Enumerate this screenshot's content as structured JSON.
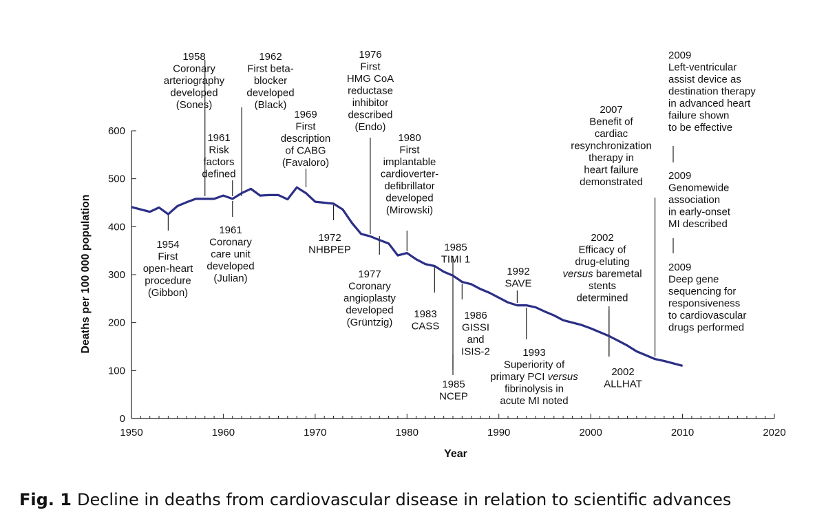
{
  "caption": {
    "label": "Fig. 1",
    "text": "Decline in deaths from cardiovascular disease in relation to scientific advances"
  },
  "chart_data": {
    "type": "line",
    "title": "",
    "xlabel": "Year",
    "ylabel": "Deaths per 100 000 population",
    "xlim": [
      1950,
      2020
    ],
    "ylim": [
      0,
      600
    ],
    "xticks": [
      1950,
      1960,
      1970,
      1980,
      1990,
      2000,
      2010,
      2020
    ],
    "yticks": [
      0,
      100,
      200,
      300,
      400,
      500,
      600
    ],
    "grid": false,
    "line_color": "#2b2f86",
    "series": [
      {
        "x": [
          1950,
          1952,
          1953,
          1954,
          1955,
          1956,
          1957,
          1958,
          1959,
          1960,
          1961,
          1962,
          1963,
          1964,
          1965,
          1966,
          1967,
          1968,
          1969,
          1970,
          1971,
          1972,
          1973,
          1974,
          1975,
          1976,
          1977,
          1978,
          1979,
          1980,
          1981,
          1982,
          1983,
          1984,
          1985,
          1986,
          1987,
          1988,
          1989,
          1990,
          1991,
          1992,
          1993,
          1994,
          1995,
          1996,
          1997,
          1998,
          1999,
          2000,
          2001,
          2002,
          2003,
          2004,
          2005,
          2006,
          2007,
          2008,
          2009,
          2010
        ],
        "values": [
          441,
          431,
          440,
          426,
          443,
          451,
          458,
          458,
          458,
          465,
          458,
          470,
          479,
          465,
          466,
          466,
          457,
          482,
          470,
          452,
          450,
          448,
          436,
          408,
          385,
          380,
          372,
          365,
          340,
          345,
          332,
          322,
          318,
          306,
          298,
          285,
          280,
          270,
          262,
          252,
          242,
          236,
          236,
          232,
          223,
          215,
          205,
          200,
          195,
          188,
          180,
          172,
          162,
          152,
          140,
          132,
          124,
          120,
          115,
          110
        ]
      }
    ],
    "annotations": [
      {
        "year": 1958,
        "lines": [
          "1958",
          "Coronary",
          "arteriography",
          "developed",
          "(Sones)"
        ]
      },
      {
        "year": 1962,
        "lines": [
          "1962",
          "First beta-",
          "blocker",
          "developed",
          "(Black)"
        ]
      },
      {
        "year": 1969,
        "lines": [
          "1969",
          "First",
          "description",
          "of CABG",
          "(Favaloro)"
        ]
      },
      {
        "year": 1976,
        "lines": [
          "1976",
          "First",
          "HMG CoA",
          "reductase",
          "inhibitor",
          "described",
          "(Endo)"
        ]
      },
      {
        "year": 1961,
        "lines": [
          "1961",
          "Risk",
          "factors",
          "defined"
        ]
      },
      {
        "year": 1980,
        "lines": [
          "1980",
          "First",
          "implantable",
          "cardioverter-",
          "defibrillator",
          "developed",
          "(Mirowski)"
        ]
      },
      {
        "year": 2007,
        "lines": [
          "2007",
          "Benefit of",
          "cardiac",
          "resynchronization",
          "therapy in",
          "heart failure",
          "demonstrated"
        ]
      },
      {
        "year": 2009,
        "lines": [
          "2009",
          "Left-ventricular",
          "assist device as",
          "destination therapy",
          "in advanced heart",
          "failure shown",
          "to be effective"
        ]
      },
      {
        "year": 2009,
        "lines": [
          "2009",
          "Genomewide",
          "association",
          "in early-onset",
          "MI described"
        ]
      },
      {
        "year": 2009,
        "lines": [
          "2009",
          "Deep gene",
          "sequencing for",
          "responsiveness",
          "to cardiovascular",
          "drugs performed"
        ]
      },
      {
        "year": 1954,
        "lines": [
          "1954",
          "First",
          "open-heart",
          "procedure",
          "(Gibbon)"
        ]
      },
      {
        "year": 1961,
        "lines": [
          "1961",
          "Coronary",
          "care unit",
          "developed",
          "(Julian)"
        ]
      },
      {
        "year": 1972,
        "lines": [
          "1972",
          "NHBPEP"
        ]
      },
      {
        "year": 1977,
        "lines": [
          "1977",
          "Coronary",
          "angioplasty",
          "developed",
          "(Grüntzig)"
        ]
      },
      {
        "year": 1983,
        "lines": [
          "1983",
          "CASS"
        ]
      },
      {
        "year": 1985,
        "lines": [
          "1985",
          "TIMI 1"
        ]
      },
      {
        "year": 1986,
        "lines": [
          "1986",
          "GISSI",
          "and",
          "ISIS-2"
        ]
      },
      {
        "year": 1985,
        "lines": [
          "1985",
          "NCEP"
        ]
      },
      {
        "year": 1992,
        "lines": [
          "1992",
          "SAVE"
        ]
      },
      {
        "year": 1993,
        "lines": [
          "1993",
          "Superiority of",
          "primary PCI versus",
          "fibrinolysis in",
          "acute MI noted"
        ]
      },
      {
        "year": 2002,
        "lines": [
          "2002",
          "Efficacy of",
          "drug-eluting",
          "versus baremetal",
          "stents",
          "determined"
        ]
      },
      {
        "year": 2002,
        "lines": [
          "2002",
          "ALLHAT"
        ]
      }
    ]
  }
}
